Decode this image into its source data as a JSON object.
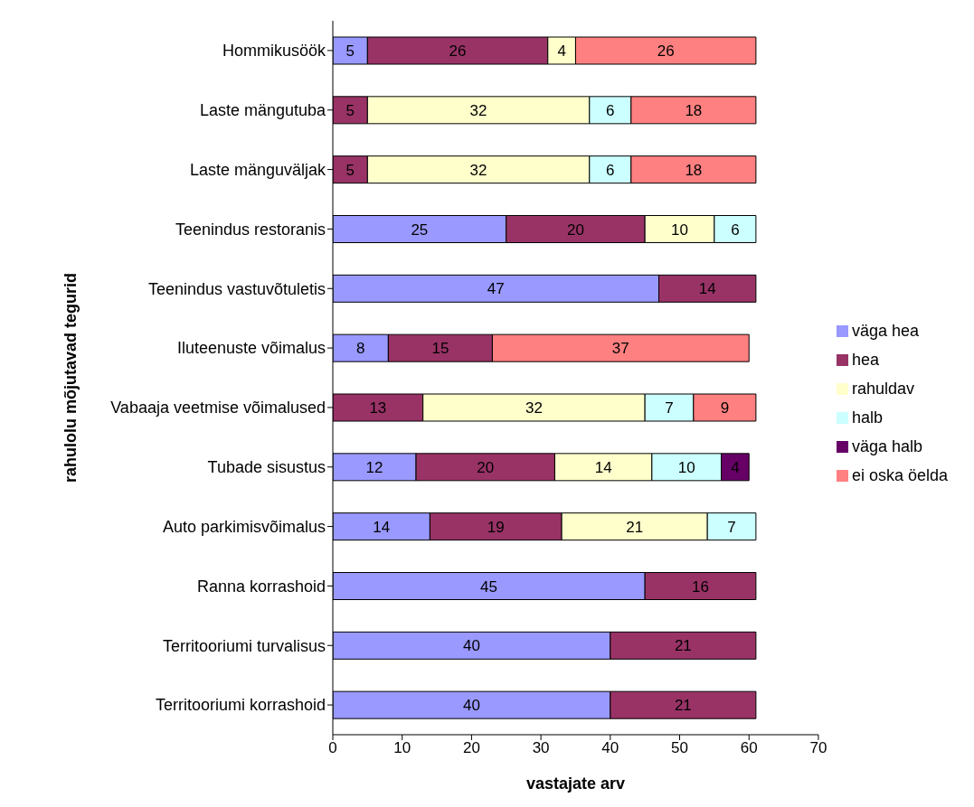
{
  "chart_data": {
    "type": "bar",
    "orientation": "horizontal",
    "stacked": true,
    "xlabel": "vastajate arv",
    "ylabel": "rahulolu mõjutavad tegurid",
    "categories": [
      "Hommikusöök",
      "Laste mängutuba",
      "Laste mänguväljak",
      "Teenindus restoranis",
      "Teenindus vastuvõtuletis",
      "Iluteenuste võimalus",
      "Vabaaja veetmise võimalused",
      "Tubade sisustus",
      "Auto parkimisvõimalus",
      "Ranna korrashoid",
      "Territooriumi turvalisus",
      "Territooriumi korrashoid"
    ],
    "series": [
      {
        "name": "väga hea",
        "color": "#9999ff",
        "values": [
          5,
          null,
          null,
          25,
          47,
          8,
          null,
          12,
          14,
          45,
          40,
          40
        ]
      },
      {
        "name": "hea",
        "color": "#993366",
        "values": [
          26,
          5,
          5,
          20,
          14,
          15,
          13,
          20,
          19,
          16,
          21,
          21
        ]
      },
      {
        "name": "rahuldav",
        "color": "#ffffcc",
        "values": [
          4,
          32,
          32,
          10,
          null,
          null,
          32,
          14,
          21,
          null,
          null,
          null
        ]
      },
      {
        "name": "halb",
        "color": "#ccffff",
        "values": [
          null,
          6,
          6,
          6,
          null,
          null,
          7,
          10,
          7,
          null,
          null,
          null
        ]
      },
      {
        "name": "väga halb",
        "color": "#660066",
        "values": [
          null,
          null,
          null,
          null,
          null,
          null,
          null,
          4,
          null,
          null,
          null,
          null
        ]
      },
      {
        "name": "ei oska öelda",
        "color": "#ff8080",
        "values": [
          26,
          18,
          18,
          null,
          null,
          37,
          9,
          null,
          null,
          null,
          null,
          null
        ]
      }
    ],
    "xlim": [
      0,
      70
    ],
    "xticks": [
      0,
      10,
      20,
      30,
      40,
      50,
      60,
      70
    ],
    "data_labels": true,
    "legend": "right",
    "grid": false
  }
}
